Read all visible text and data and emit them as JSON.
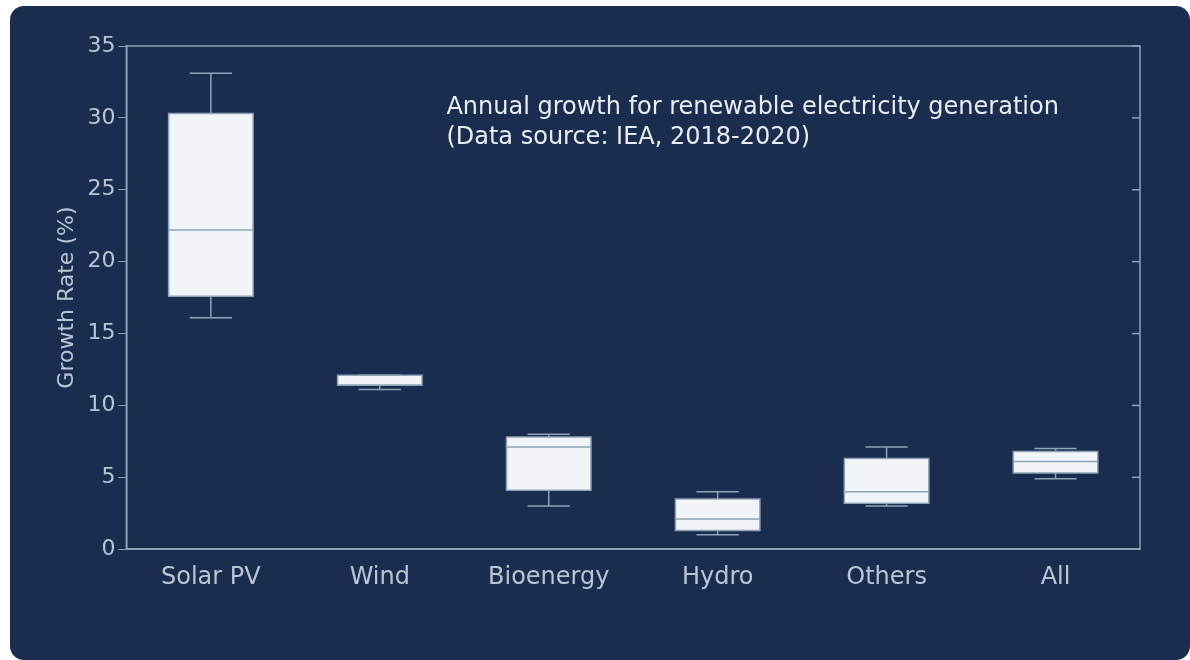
{
  "chart_data": {
    "type": "box",
    "title": "Annual growth for renewable electricity generation\n(Data source: IEA, 2018-2020)",
    "ylabel": "Growth Rate (%)",
    "categories": [
      "Solar PV",
      "Wind",
      "Bioenergy",
      "Hydro",
      "Others",
      "All"
    ],
    "boxes": [
      {
        "low": 16.1,
        "q1": 17.6,
        "median": 22.2,
        "q3": 30.3,
        "high": 33.1
      },
      {
        "low": 11.1,
        "q1": 11.4,
        "median": 11.4,
        "q3": 12.1,
        "high": 12.1
      },
      {
        "low": 3.0,
        "q1": 4.1,
        "median": 7.1,
        "q3": 7.8,
        "high": 8.0
      },
      {
        "low": 1.0,
        "q1": 1.3,
        "median": 2.1,
        "q3": 3.5,
        "high": 4.0
      },
      {
        "low": 3.0,
        "q1": 3.2,
        "median": 4.0,
        "q3": 6.3,
        "high": 7.1
      },
      {
        "low": 4.9,
        "q1": 5.3,
        "median": 6.1,
        "q3": 6.8,
        "high": 7.0
      }
    ],
    "color": "#f2f5f7",
    "ylim": [
      0,
      35
    ],
    "yticks": [
      0,
      5,
      10,
      15,
      20,
      25,
      30,
      35
    ],
    "grid": false,
    "legend": false
  }
}
